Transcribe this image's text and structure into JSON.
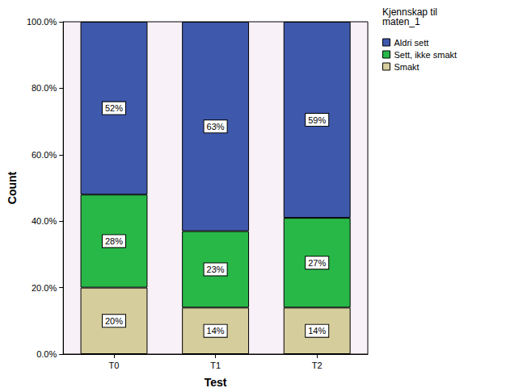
{
  "chart_data": {
    "type": "bar",
    "stacked": true,
    "data_labels": true,
    "grid": false,
    "legend": "upper right",
    "legend_title": "Kjennskap til maten_1",
    "xlabel": "Test",
    "ylabel": "Count",
    "categories": [
      "T0",
      "T1",
      "T2"
    ],
    "ylim": [
      0,
      100
    ],
    "yticks": [
      {
        "value": 0,
        "label": "0.0%"
      },
      {
        "value": 20,
        "label": "20.0%"
      },
      {
        "value": 40,
        "label": "40.0%"
      },
      {
        "value": 60,
        "label": "60.0%"
      },
      {
        "value": 80,
        "label": "80.0%"
      },
      {
        "value": 100,
        "label": "100.0%"
      }
    ],
    "series": [
      {
        "name": "Aldri sett",
        "color": "#3e58ac",
        "values": [
          52,
          63,
          59
        ],
        "value_labels": [
          "52%",
          "63%",
          "59%"
        ]
      },
      {
        "name": "Sett, ikke smakt",
        "color": "#28b848",
        "values": [
          28,
          23,
          27
        ],
        "value_labels": [
          "28%",
          "23%",
          "27%"
        ]
      },
      {
        "name": "Smakt",
        "color": "#d6cd9c",
        "values": [
          20,
          14,
          14
        ],
        "value_labels": [
          "20%",
          "14%",
          "14%"
        ]
      }
    ]
  }
}
